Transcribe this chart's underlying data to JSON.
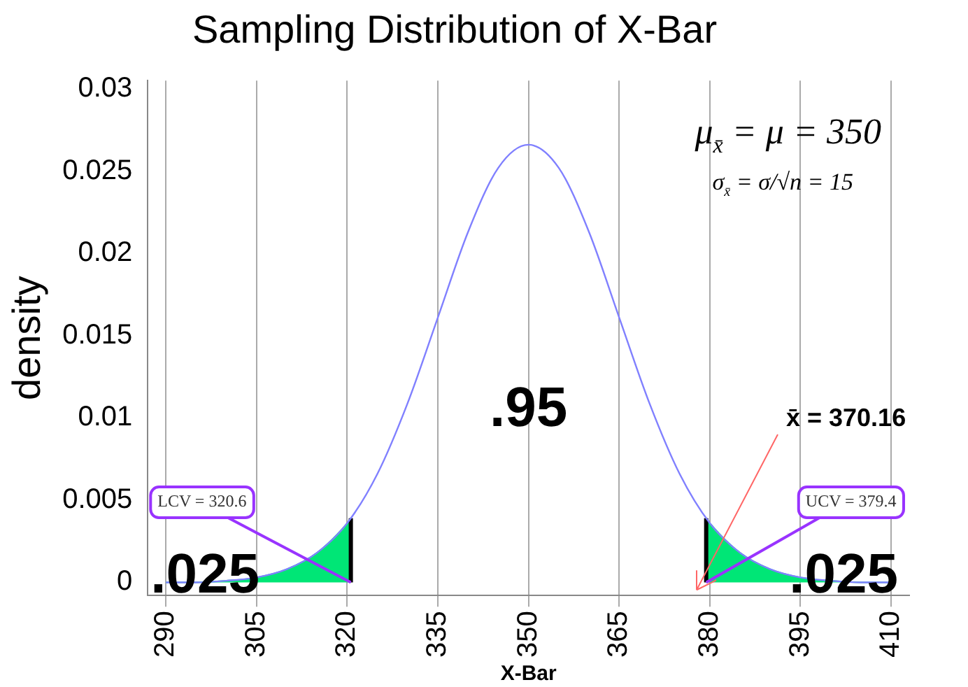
{
  "chart_data": {
    "type": "line",
    "title": "Sampling Distribution of X-Bar",
    "xlabel": "X-Bar",
    "ylabel": "density",
    "xlim": [
      287,
      413
    ],
    "ylim": [
      -0.0008,
      0.0305
    ],
    "xticks": [
      290,
      305,
      320,
      335,
      350,
      365,
      380,
      395,
      410
    ],
    "yticks": [
      0,
      0.005,
      0.01,
      0.015,
      0.02,
      0.025,
      0.03
    ],
    "grid": "x",
    "legend": false,
    "marker": "none",
    "series": [
      {
        "color": "#8080ff",
        "x": [
          290,
          295,
          300,
          305,
          310,
          315,
          320,
          325,
          330,
          335,
          340,
          345,
          350,
          355,
          360,
          365,
          370,
          375,
          380,
          385,
          390,
          395,
          400,
          405,
          410
        ],
        "values": [
          0,
          0,
          0.0001,
          0.0003,
          0.0008,
          0.0018,
          0.0036,
          0.0066,
          0.0109,
          0.0161,
          0.0213,
          0.0252,
          0.0266,
          0.0252,
          0.0213,
          0.0161,
          0.0109,
          0.0066,
          0.0036,
          0.0018,
          0.0008,
          0.0003,
          0.0001,
          0,
          0
        ]
      },
      {
        "type": "area",
        "color": "#00e676",
        "x": [
          290,
          295,
          300,
          305,
          310,
          315,
          320,
          320.6
        ],
        "values": [
          0,
          0,
          0.0001,
          0.0003,
          0.0008,
          0.0018,
          0.0036,
          0.0039
        ]
      },
      {
        "type": "area",
        "color": "#00e676",
        "x": [
          379.4,
          380,
          385,
          390,
          395,
          400,
          405,
          410
        ],
        "values": [
          0.0039,
          0.0036,
          0.0018,
          0.0008,
          0.0003,
          0.0001,
          0,
          0
        ]
      },
      {
        "type": "line",
        "color": "#000000",
        "x": [
          320.6,
          320.6
        ],
        "values": [
          0,
          0.0039
        ]
      },
      {
        "type": "line",
        "color": "#000000",
        "x": [
          379.4,
          379.4
        ],
        "values": [
          0,
          0.0039
        ]
      }
    ],
    "annotations": [
      "μ$_{x̄}$ = μ = 350",
      "σ$_{x̄}$ = σ/√n = 15",
      ".95",
      ".025",
      ".025",
      {
        "text": "LCV = 320.6",
        "x": 320.6,
        "y": 0
      },
      {
        "text": "UCV = 379.4",
        "x": 379.4,
        "y": 0
      },
      "x̄ = 370.16"
    ]
  }
}
